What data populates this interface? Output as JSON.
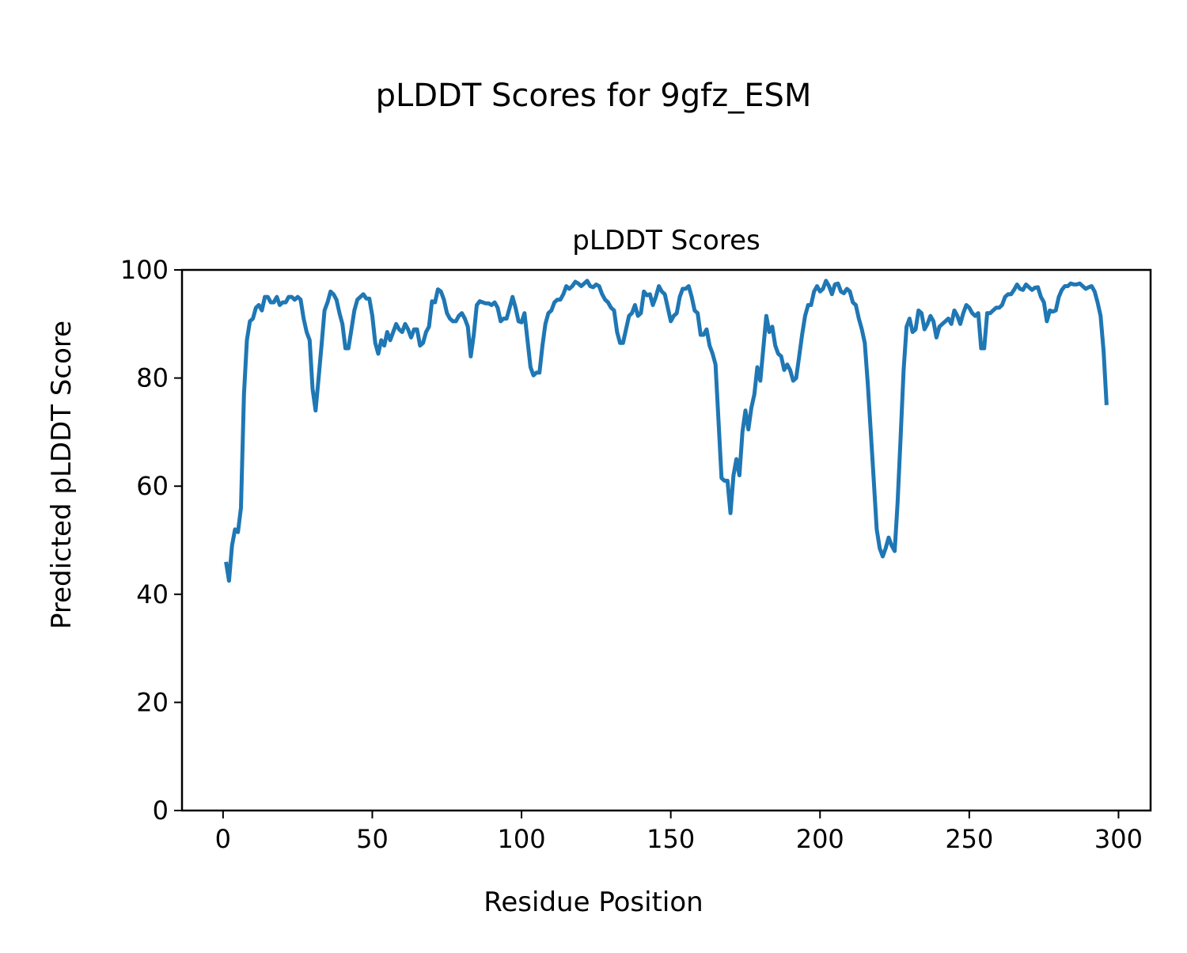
{
  "chart_data": {
    "type": "line",
    "suptitle": "pLDDT Scores for 9gfz_ESM",
    "title": "pLDDT Scores",
    "xlabel": "Residue Position",
    "ylabel": "Predicted pLDDT Score",
    "xlim": [
      -13.75,
      310.75
    ],
    "ylim": [
      0,
      100
    ],
    "xticks": [
      0,
      50,
      100,
      150,
      200,
      250,
      300
    ],
    "yticks": [
      0,
      20,
      40,
      60,
      80,
      100
    ],
    "grid": false,
    "color": "#1f77b4",
    "x": [
      1,
      2,
      3,
      4,
      5,
      6,
      7,
      8,
      9,
      10,
      11,
      12,
      13,
      14,
      15,
      16,
      17,
      18,
      19,
      20,
      21,
      22,
      23,
      24,
      25,
      26,
      27,
      28,
      29,
      30,
      31,
      32,
      33,
      34,
      35,
      36,
      37,
      38,
      39,
      40,
      41,
      42,
      43,
      44,
      45,
      46,
      47,
      48,
      49,
      50,
      51,
      52,
      53,
      54,
      55,
      56,
      57,
      58,
      59,
      60,
      61,
      62,
      63,
      64,
      65,
      66,
      67,
      68,
      69,
      70,
      71,
      72,
      73,
      74,
      75,
      76,
      77,
      78,
      79,
      80,
      81,
      82,
      83,
      84,
      85,
      86,
      87,
      88,
      89,
      90,
      91,
      92,
      93,
      94,
      95,
      96,
      97,
      98,
      99,
      100,
      101,
      102,
      103,
      104,
      105,
      106,
      107,
      108,
      109,
      110,
      111,
      112,
      113,
      114,
      115,
      116,
      117,
      118,
      119,
      120,
      121,
      122,
      123,
      124,
      125,
      126,
      127,
      128,
      129,
      130,
      131,
      132,
      133,
      134,
      135,
      136,
      137,
      138,
      139,
      140,
      141,
      142,
      143,
      144,
      145,
      146,
      147,
      148,
      149,
      150,
      151,
      152,
      153,
      154,
      155,
      156,
      157,
      158,
      159,
      160,
      161,
      162,
      163,
      164,
      165,
      166,
      167,
      168,
      169,
      170,
      171,
      172,
      173,
      174,
      175,
      176,
      177,
      178,
      179,
      180,
      181,
      182,
      183,
      184,
      185,
      186,
      187,
      188,
      189,
      190,
      191,
      192,
      193,
      194,
      195,
      196,
      197,
      198,
      199,
      200,
      201,
      202,
      203,
      204,
      205,
      206,
      207,
      208,
      209,
      210,
      211,
      212,
      213,
      214,
      215,
      216,
      217,
      218,
      219,
      220,
      221,
      222,
      223,
      224,
      225,
      226,
      227,
      228,
      229,
      230,
      231,
      232,
      233,
      234,
      235,
      236,
      237,
      238,
      239,
      240,
      241,
      242,
      243,
      244,
      245,
      246,
      247,
      248,
      249,
      250,
      251,
      252,
      253,
      254,
      255,
      256,
      257,
      258,
      259,
      260,
      261,
      262,
      263,
      264,
      265,
      266,
      267,
      268,
      269,
      270,
      271,
      272,
      273,
      274,
      275,
      276,
      277,
      278,
      279,
      280,
      281,
      282,
      283,
      284,
      285,
      286,
      287,
      288,
      289,
      290,
      291,
      292,
      293,
      294,
      295,
      296
    ],
    "y": [
      46,
      42.5,
      49,
      52,
      51.5,
      56,
      77,
      87,
      90.5,
      91,
      93,
      93.5,
      92.5,
      95,
      95,
      94,
      94,
      95,
      93.5,
      94,
      94,
      95,
      95,
      94.5,
      95,
      94.5,
      91,
      88.5,
      87,
      78,
      74,
      80,
      86,
      92.5,
      94,
      96,
      95.5,
      94.5,
      92,
      90,
      85.5,
      85.5,
      89,
      92.5,
      94.5,
      95,
      95.5,
      94.7,
      94.7,
      91.5,
      86.5,
      84.5,
      87,
      86,
      88.5,
      87,
      88.5,
      90,
      89,
      88.5,
      90,
      89,
      87.5,
      89,
      89,
      86,
      86.5,
      88.5,
      89.5,
      94.2,
      94,
      96.4,
      96,
      94.5,
      92,
      91,
      90.5,
      90.5,
      91.5,
      92,
      91,
      89.5,
      84,
      88,
      93.5,
      94.2,
      94,
      93.8,
      93.8,
      93.5,
      94,
      93,
      90.5,
      91,
      91,
      93,
      95,
      93,
      90.5,
      90.3,
      92,
      87,
      82,
      80.5,
      81,
      81,
      86,
      90,
      92,
      92.5,
      94,
      94.5,
      94.5,
      95.5,
      97,
      96.5,
      97,
      97.8,
      97.5,
      97,
      97.5,
      98,
      97,
      96.8,
      97.3,
      97,
      95.5,
      94.5,
      94,
      93,
      92.5,
      88.5,
      86.5,
      86.5,
      89,
      91.5,
      92,
      93.5,
      91.5,
      92,
      96,
      95.3,
      95.5,
      93.5,
      95,
      97,
      96,
      95.5,
      93,
      90.5,
      91.5,
      92,
      95,
      96.5,
      96.5,
      97,
      95,
      92.5,
      92,
      88,
      88,
      89,
      86,
      84.5,
      82.5,
      72,
      61.5,
      61,
      61,
      55,
      62,
      65,
      62,
      70,
      74,
      70.5,
      74.5,
      77,
      82,
      79.5,
      85.5,
      91.5,
      88.5,
      89.5,
      86,
      84.5,
      84,
      81.5,
      82.5,
      81.5,
      79.5,
      80,
      84,
      88,
      91.5,
      93.5,
      93.5,
      96,
      97,
      96,
      96.5,
      98,
      97,
      95.5,
      97.3,
      97.5,
      96,
      95.7,
      96.5,
      96,
      94,
      93.5,
      91,
      89,
      86.5,
      79,
      70,
      61,
      52,
      48.5,
      47,
      48.5,
      50.5,
      49,
      48,
      57,
      69,
      81.5,
      89.5,
      91,
      88.5,
      89,
      92.5,
      92,
      89,
      90,
      91.5,
      90.5,
      87.5,
      89.5,
      90,
      90.5,
      91,
      90,
      92.5,
      91.5,
      90,
      92,
      93.5,
      93,
      92,
      91.5,
      92,
      85.5,
      85.5,
      92,
      92,
      92.5,
      93,
      93,
      93.5,
      95,
      95.5,
      95.5,
      96.3,
      97.3,
      96.5,
      96.3,
      97.3,
      96.8,
      96.3,
      96.7,
      96.8,
      95,
      94,
      90.5,
      92.5,
      92.3,
      92.5,
      95,
      96.3,
      97,
      97,
      97.5,
      97.3,
      97.3,
      97.5,
      97,
      96.5,
      96.8,
      97,
      96,
      94,
      91.5,
      85,
      75
    ]
  }
}
